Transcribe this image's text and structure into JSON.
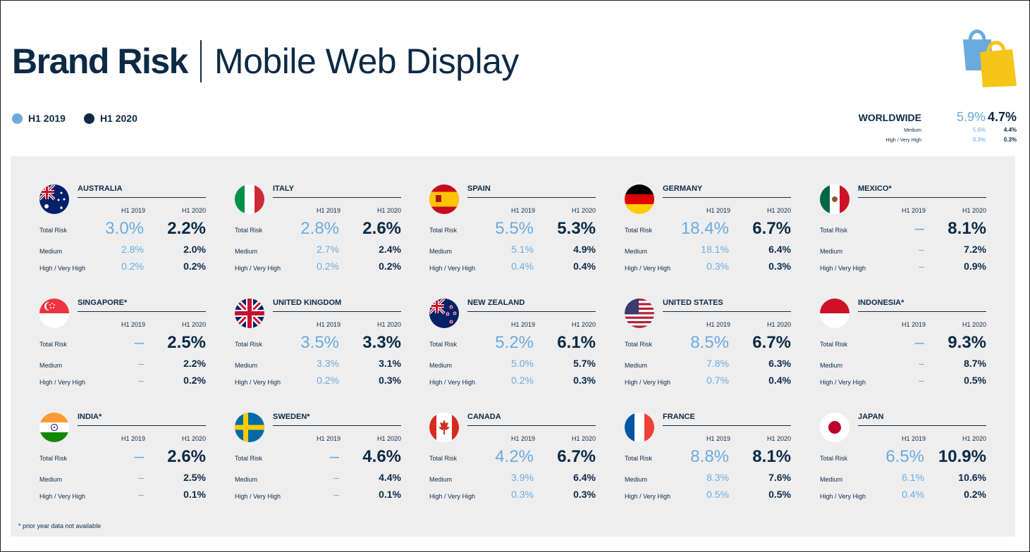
{
  "title": {
    "bold": "Brand Risk",
    "light": "Mobile Web Display"
  },
  "legend": [
    {
      "label": "H1 2019",
      "color": "#6aabdd"
    },
    {
      "label": "H1 2020",
      "color": "#0d2a45"
    }
  ],
  "worldwide": {
    "label": "WORLDWIDE",
    "total": [
      "5.9%",
      "4.7%"
    ],
    "medium_label": "Medium",
    "medium": [
      "5.6%",
      "4.4%"
    ],
    "high_label": "High / Very High",
    "high": [
      "0.3%",
      "0.3%"
    ]
  },
  "labels": {
    "h2019": "H1 2019",
    "h2020": "H1 2020",
    "total": "Total Risk",
    "medium": "Medium",
    "high": "High / Very High"
  },
  "countries": [
    {
      "name": "AUSTRALIA",
      "flag": "australia",
      "total": [
        "3.0%",
        "2.2%"
      ],
      "medium": [
        "2.8%",
        "2.0%"
      ],
      "high": [
        "0.2%",
        "0.2%"
      ]
    },
    {
      "name": "ITALY",
      "flag": "italy",
      "total": [
        "2.8%",
        "2.6%"
      ],
      "medium": [
        "2.7%",
        "2.4%"
      ],
      "high": [
        "0.2%",
        "0.2%"
      ]
    },
    {
      "name": "SPAIN",
      "flag": "spain",
      "total": [
        "5.5%",
        "5.3%"
      ],
      "medium": [
        "5.1%",
        "4.9%"
      ],
      "high": [
        "0.4%",
        "0.4%"
      ]
    },
    {
      "name": "GERMANY",
      "flag": "germany",
      "total": [
        "18.4%",
        "6.7%"
      ],
      "medium": [
        "18.1%",
        "6.4%"
      ],
      "high": [
        "0.3%",
        "0.3%"
      ]
    },
    {
      "name": "MEXICO*",
      "flag": "mexico",
      "total": [
        "–",
        "8.1%"
      ],
      "medium": [
        "–",
        "7.2%"
      ],
      "high": [
        "–",
        "0.9%"
      ]
    },
    {
      "name": "SINGAPORE*",
      "flag": "singapore",
      "total": [
        "–",
        "2.5%"
      ],
      "medium": [
        "–",
        "2.2%"
      ],
      "high": [
        "–",
        "0.2%"
      ]
    },
    {
      "name": "UNITED KINGDOM",
      "flag": "uk",
      "total": [
        "3.5%",
        "3.3%"
      ],
      "medium": [
        "3.3%",
        "3.1%"
      ],
      "high": [
        "0.2%",
        "0.3%"
      ]
    },
    {
      "name": "NEW ZEALAND",
      "flag": "newzealand",
      "total": [
        "5.2%",
        "6.1%"
      ],
      "medium": [
        "5.0%",
        "5.7%"
      ],
      "high": [
        "0.2%",
        "0.3%"
      ]
    },
    {
      "name": "UNITED STATES",
      "flag": "usa",
      "total": [
        "8.5%",
        "6.7%"
      ],
      "medium": [
        "7.8%",
        "6.3%"
      ],
      "high": [
        "0.7%",
        "0.4%"
      ]
    },
    {
      "name": "INDONESIA*",
      "flag": "indonesia",
      "total": [
        "–",
        "9.3%"
      ],
      "medium": [
        "–",
        "8.7%"
      ],
      "high": [
        "–",
        "0.5%"
      ]
    },
    {
      "name": "INDIA*",
      "flag": "india",
      "total": [
        "–",
        "2.6%"
      ],
      "medium": [
        "–",
        "2.5%"
      ],
      "high": [
        "–",
        "0.1%"
      ]
    },
    {
      "name": "SWEDEN*",
      "flag": "sweden",
      "total": [
        "–",
        "4.6%"
      ],
      "medium": [
        "–",
        "4.4%"
      ],
      "high": [
        "–",
        "0.1%"
      ]
    },
    {
      "name": "CANADA",
      "flag": "canada",
      "total": [
        "4.2%",
        "6.7%"
      ],
      "medium": [
        "3.9%",
        "6.4%"
      ],
      "high": [
        "0.3%",
        "0.3%"
      ]
    },
    {
      "name": "FRANCE",
      "flag": "france",
      "total": [
        "8.8%",
        "8.1%"
      ],
      "medium": [
        "8.3%",
        "7.6%"
      ],
      "high": [
        "0.5%",
        "0.5%"
      ]
    },
    {
      "name": "JAPAN",
      "flag": "japan",
      "total": [
        "6.5%",
        "10.9%"
      ],
      "medium": [
        "6.1%",
        "10.6%"
      ],
      "high": [
        "0.4%",
        "0.2%"
      ]
    }
  ],
  "footnote": "* prior year data not available"
}
